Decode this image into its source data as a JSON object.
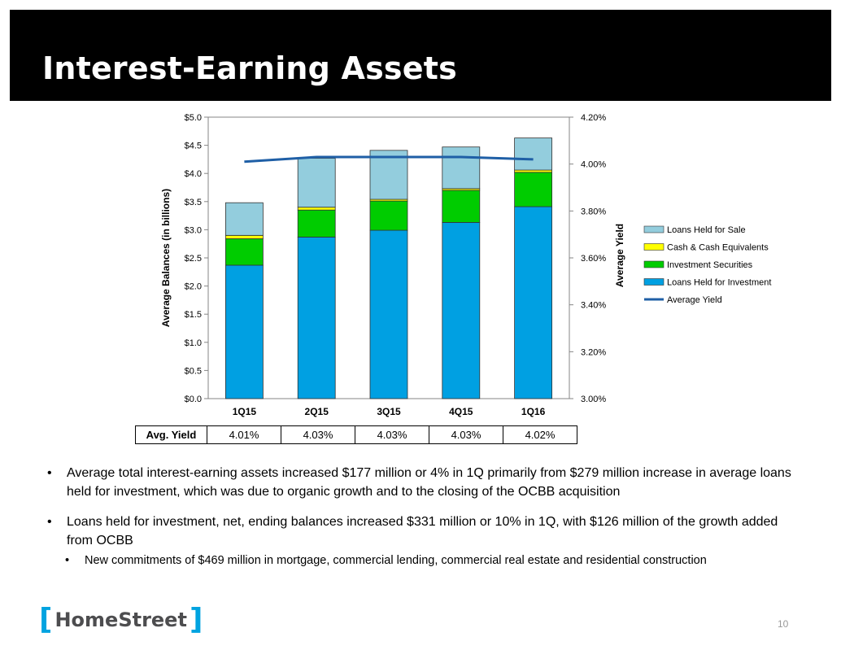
{
  "slide": {
    "title": "Interest-Earning Assets",
    "page_number": "10",
    "logo_text": "HomeStreet",
    "bullets": [
      "Average total interest-earning assets increased $177 million or 4% in 1Q primarily from $279 million increase in average loans held for investment, which was due to organic growth and to the closing of the OCBB acquisition",
      "Loans held for investment, net, ending balances increased $331 million or 10% in 1Q, with $126 million of the growth added from OCBB"
    ],
    "sub_bullets": [
      "New commitments of $469 million in mortgage, commercial lending, commercial real estate and residential construction"
    ]
  },
  "yield_table": {
    "label": "Avg. Yield",
    "values": [
      "4.01%",
      "4.03%",
      "4.03%",
      "4.03%",
      "4.02%"
    ]
  },
  "chart_data": {
    "type": "bar",
    "stacked": true,
    "categories": [
      "1Q15",
      "2Q15",
      "3Q15",
      "4Q15",
      "1Q16"
    ],
    "series": [
      {
        "name": "Loans Held for Investment",
        "color": "#00a0e2",
        "values": [
          2.37,
          2.87,
          2.99,
          3.13,
          3.41
        ]
      },
      {
        "name": "Investment Securities",
        "color": "#00cc00",
        "values": [
          0.47,
          0.48,
          0.52,
          0.57,
          0.61
        ]
      },
      {
        "name": "Cash & Cash Equivalents",
        "color": "#ffff00",
        "values": [
          0.06,
          0.05,
          0.03,
          0.03,
          0.04
        ]
      },
      {
        "name": "Loans Held for Sale",
        "color": "#93cddd",
        "values": [
          0.58,
          0.87,
          0.87,
          0.74,
          0.57
        ]
      }
    ],
    "line_series": {
      "name": "Average Yield",
      "color": "#1f5fa6",
      "values": [
        4.01,
        4.03,
        4.03,
        4.03,
        4.02
      ]
    },
    "ylabel": "Average Balances (in billions)",
    "y2label": "Average Yield",
    "ylim": [
      0,
      5
    ],
    "y2lim": [
      3.0,
      4.2
    ],
    "yticks": [
      "$0.0",
      "$0.5",
      "$1.0",
      "$1.5",
      "$2.0",
      "$2.5",
      "$3.0",
      "$3.5",
      "$4.0",
      "$4.5",
      "$5.0"
    ],
    "y2ticks": [
      "3.00%",
      "3.20%",
      "3.40%",
      "3.60%",
      "3.80%",
      "4.00%",
      "4.20%"
    ],
    "legend": [
      "Loans Held for Sale",
      "Cash & Cash Equivalents",
      "Investment Securities",
      "Loans Held for Investment",
      "Average Yield"
    ],
    "legend_position": "right",
    "grid": false
  }
}
